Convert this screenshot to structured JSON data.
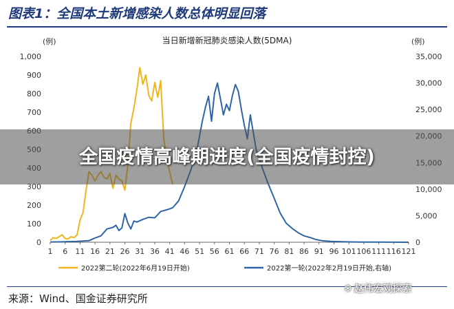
{
  "figure_title": "图表1：全国本土新增感染人数总体明显回落",
  "source_text": "来源：Wind、国金证券研究所",
  "overlay_text": "全国疫情高峰期进度(全国疫情封控)",
  "watermark": {
    "text": "赵伟宏观探索",
    "icon": "wechat-icon"
  },
  "colors": {
    "series_2nd": "#f0b41c",
    "series_1st": "#2c64a7",
    "title": "#1f3a7a"
  },
  "chart_data": {
    "type": "line",
    "title": "当日新增新冠肺炎感染人数(5DMA)",
    "left_unit": "(例)",
    "right_unit": "(例)",
    "x_ticks": [
      "1",
      "6",
      "11",
      "16",
      "21",
      "26",
      "31",
      "36",
      "41",
      "46",
      "51",
      "56",
      "61",
      "66",
      "71",
      "76",
      "81",
      "86",
      "91",
      "96",
      "101",
      "106",
      "111",
      "116",
      "121"
    ],
    "xlim": [
      1,
      121
    ],
    "y_left": {
      "lim": [
        0,
        1000
      ],
      "ticks": [
        "0",
        "100",
        "200",
        "300",
        "400",
        "500",
        "600",
        "700",
        "800",
        "900",
        "1,000"
      ]
    },
    "y_right": {
      "lim": [
        0,
        35000
      ],
      "ticks": [
        "0",
        "5,000",
        "10,000",
        "15,000",
        "20,000",
        "25,000",
        "30,000",
        "35,000"
      ]
    },
    "legend_position": "bottom",
    "series": [
      {
        "name": "2022第二轮(2022年6月19日开始)",
        "axis": "left",
        "x": [
          1,
          2,
          3,
          4,
          5,
          6,
          7,
          8,
          9,
          10,
          11,
          12,
          13,
          14,
          15,
          16,
          17,
          18,
          19,
          20,
          21,
          22,
          23,
          24,
          25,
          26,
          27,
          28,
          29,
          30,
          31,
          32,
          33,
          34,
          35,
          36,
          37,
          38,
          39,
          40,
          41,
          42
        ],
        "y": [
          10,
          25,
          20,
          30,
          40,
          20,
          18,
          30,
          25,
          40,
          120,
          160,
          280,
          380,
          360,
          330,
          360,
          380,
          350,
          340,
          370,
          290,
          360,
          340,
          330,
          280,
          420,
          640,
          720,
          820,
          940,
          850,
          900,
          790,
          760,
          860,
          780,
          870,
          560,
          450,
          380,
          310
        ]
      },
      {
        "name": "2022第一轮(2022年2月19日开始,右轴)",
        "axis": "right",
        "x": [
          1,
          5,
          10,
          14,
          16,
          18,
          20,
          22,
          23,
          24,
          25,
          26,
          27,
          28,
          29,
          30,
          32,
          34,
          36,
          38,
          40,
          42,
          44,
          46,
          48,
          50,
          52,
          53,
          54,
          55,
          56,
          57,
          58,
          59,
          60,
          61,
          62,
          63,
          64,
          65,
          66,
          67,
          68,
          70,
          72,
          74,
          76,
          78,
          80,
          82,
          84,
          86,
          88,
          90,
          92,
          95,
          100,
          105,
          110,
          115,
          121
        ],
        "y": [
          50,
          80,
          150,
          300,
          800,
          1200,
          2500,
          2800,
          3200,
          2200,
          2700,
          5400,
          3600,
          2500,
          4000,
          3800,
          4300,
          4700,
          4600,
          5800,
          6100,
          6500,
          7800,
          10500,
          13500,
          17000,
          23000,
          25500,
          27500,
          22800,
          28000,
          30000,
          27000,
          24000,
          26000,
          24800,
          27600,
          29700,
          28400,
          25000,
          22000,
          19500,
          24000,
          17300,
          14000,
          11000,
          8300,
          5500,
          3600,
          2600,
          1800,
          1200,
          900,
          500,
          300,
          150,
          80,
          40,
          20,
          10,
          5
        ]
      }
    ]
  }
}
